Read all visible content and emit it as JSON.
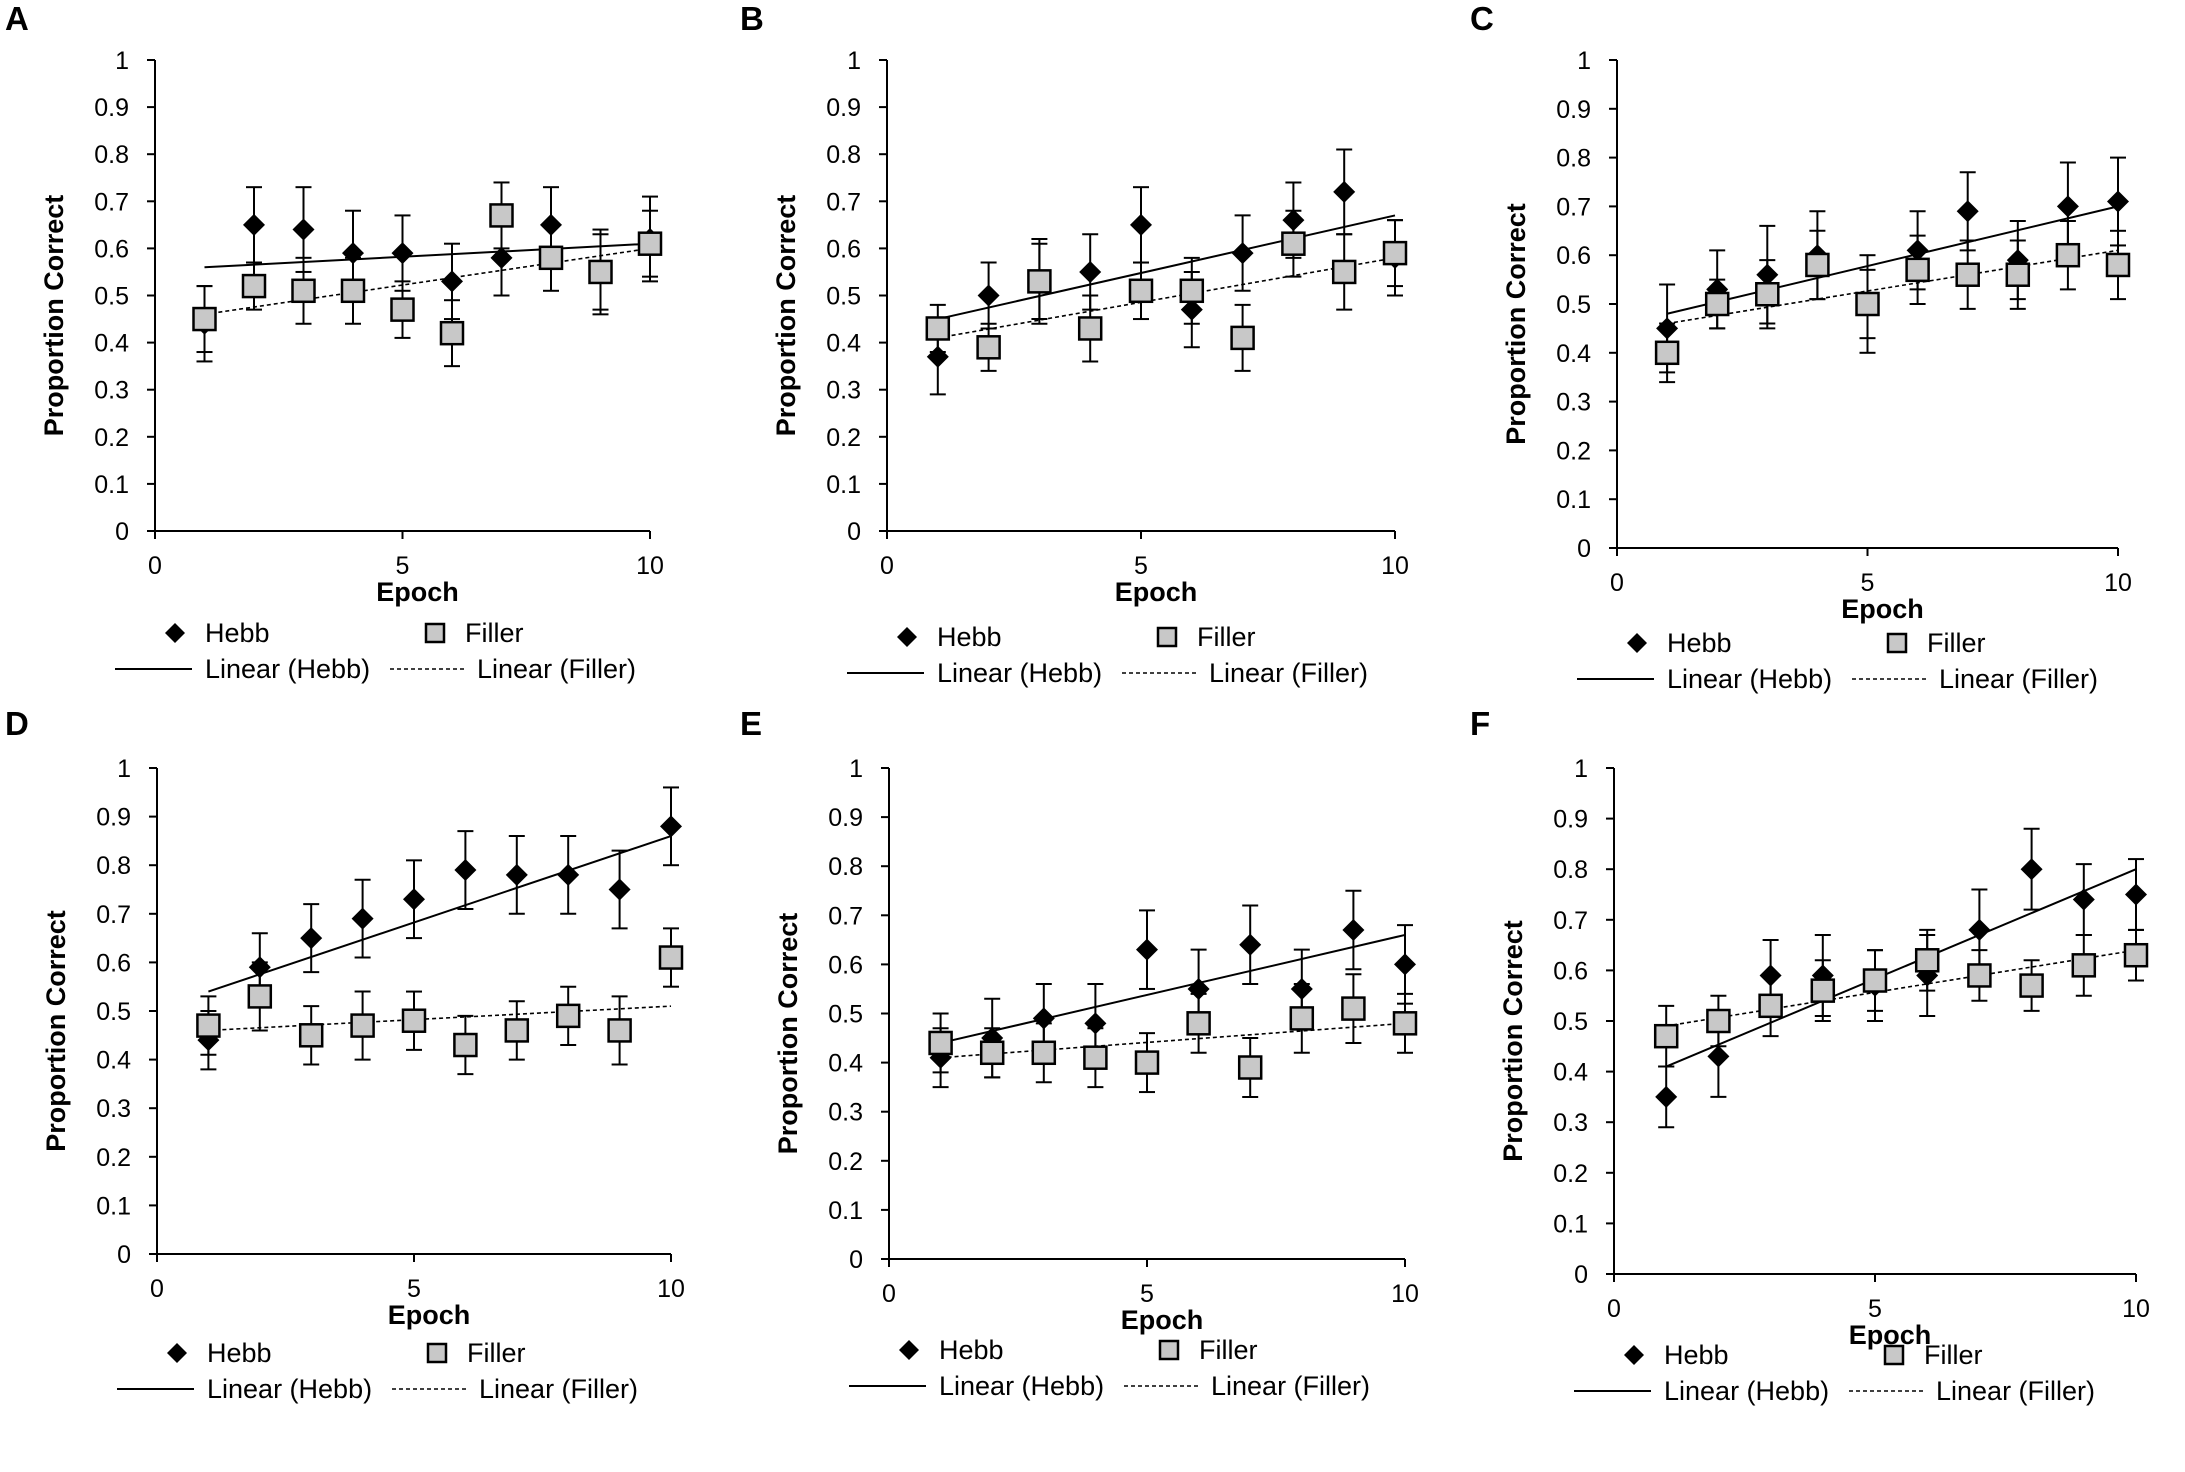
{
  "legend": {
    "hebb": "Hebb",
    "filler": "Filler",
    "linear_hebb": "Linear (Hebb)",
    "linear_filler": "Linear (Filler)"
  },
  "colors": {
    "hebb_marker": "#000000",
    "filler_marker": "#c8c8c8",
    "axis": "#000000"
  },
  "chart_data": [
    {
      "panel": "A",
      "type": "scatter",
      "xlabel": "Epoch",
      "ylabel": "Proportion Correct",
      "xlim": [
        0,
        10
      ],
      "ylim": [
        0,
        1
      ],
      "xticks": [
        "0",
        "5",
        "10"
      ],
      "yticks": [
        "0",
        "0.1",
        "0.2",
        "0.3",
        "0.4",
        "0.5",
        "0.6",
        "0.7",
        "0.8",
        "0.9",
        "1"
      ],
      "series": [
        {
          "name": "Hebb",
          "x": [
            1,
            2,
            3,
            4,
            5,
            6,
            7,
            8,
            9,
            10
          ],
          "y": [
            0.44,
            0.65,
            0.64,
            0.59,
            0.59,
            0.53,
            0.58,
            0.65,
            0.55,
            0.62
          ],
          "err": [
            0.08,
            0.08,
            0.09,
            0.09,
            0.08,
            0.08,
            0.08,
            0.08,
            0.08,
            0.09
          ]
        },
        {
          "name": "Filler",
          "x": [
            1,
            2,
            3,
            4,
            5,
            6,
            7,
            8,
            9,
            10
          ],
          "y": [
            0.45,
            0.52,
            0.51,
            0.51,
            0.47,
            0.42,
            0.67,
            0.58,
            0.55,
            0.61
          ],
          "err": [
            0.07,
            0.05,
            0.07,
            0.07,
            0.06,
            0.07,
            0.07,
            0.07,
            0.09,
            0.07
          ]
        }
      ],
      "trend": {
        "Hebb": [
          0.56,
          0.61
        ],
        "Filler": [
          0.46,
          0.6
        ]
      }
    },
    {
      "panel": "B",
      "type": "scatter",
      "xlabel": "Epoch",
      "ylabel": "Proportion Correct",
      "xlim": [
        0,
        10
      ],
      "ylim": [
        0,
        1
      ],
      "xticks": [
        "0",
        "5",
        "10"
      ],
      "yticks": [
        "0",
        "0.1",
        "0.2",
        "0.3",
        "0.4",
        "0.5",
        "0.6",
        "0.7",
        "0.8",
        "0.9",
        "1"
      ],
      "series": [
        {
          "name": "Hebb",
          "x": [
            1,
            2,
            3,
            4,
            5,
            6,
            7,
            8,
            9,
            10
          ],
          "y": [
            0.37,
            0.5,
            0.53,
            0.55,
            0.65,
            0.47,
            0.59,
            0.66,
            0.72,
            0.58
          ],
          "err": [
            0.08,
            0.07,
            0.08,
            0.08,
            0.08,
            0.08,
            0.08,
            0.08,
            0.09,
            0.08
          ]
        },
        {
          "name": "Filler",
          "x": [
            1,
            2,
            3,
            4,
            5,
            6,
            7,
            8,
            9,
            10
          ],
          "y": [
            0.43,
            0.39,
            0.53,
            0.43,
            0.51,
            0.51,
            0.41,
            0.61,
            0.55,
            0.59
          ],
          "err": [
            0.05,
            0.05,
            0.09,
            0.07,
            0.06,
            0.07,
            0.07,
            0.07,
            0.08,
            0.07
          ]
        }
      ],
      "trend": {
        "Hebb": [
          0.45,
          0.67
        ],
        "Filler": [
          0.41,
          0.58
        ]
      }
    },
    {
      "panel": "C",
      "type": "scatter",
      "xlabel": "Epoch",
      "ylabel": "Proportion Correct",
      "xlim": [
        0,
        10
      ],
      "ylim": [
        0,
        1
      ],
      "xticks": [
        "0",
        "5",
        "10"
      ],
      "yticks": [
        "0",
        "0.1",
        "0.2",
        "0.3",
        "0.4",
        "0.5",
        "0.6",
        "0.7",
        "0.8",
        "0.9",
        "1"
      ],
      "series": [
        {
          "name": "Hebb",
          "x": [
            1,
            2,
            3,
            4,
            5,
            6,
            7,
            8,
            9,
            10
          ],
          "y": [
            0.45,
            0.53,
            0.56,
            0.6,
            0.5,
            0.61,
            0.69,
            0.59,
            0.7,
            0.71
          ],
          "err": [
            0.09,
            0.08,
            0.1,
            0.09,
            0.07,
            0.08,
            0.08,
            0.08,
            0.09,
            0.09
          ]
        },
        {
          "name": "Filler",
          "x": [
            1,
            2,
            3,
            4,
            5,
            6,
            7,
            8,
            9,
            10
          ],
          "y": [
            0.4,
            0.5,
            0.52,
            0.58,
            0.5,
            0.57,
            0.56,
            0.56,
            0.6,
            0.58
          ],
          "err": [
            0.06,
            0.05,
            0.07,
            0.07,
            0.1,
            0.07,
            0.07,
            0.07,
            0.07,
            0.07
          ]
        }
      ],
      "trend": {
        "Hebb": [
          0.48,
          0.7
        ],
        "Filler": [
          0.46,
          0.61
        ]
      }
    },
    {
      "panel": "D",
      "type": "scatter",
      "xlabel": "Epoch",
      "ylabel": "Proportion Correct",
      "xlim": [
        0,
        10
      ],
      "ylim": [
        0,
        1
      ],
      "xticks": [
        "0",
        "5",
        "10"
      ],
      "yticks": [
        "0",
        "0.1",
        "0.2",
        "0.3",
        "0.4",
        "0.5",
        "0.6",
        "0.7",
        "0.8",
        "0.9",
        "1"
      ],
      "series": [
        {
          "name": "Hebb",
          "x": [
            1,
            2,
            3,
            4,
            5,
            6,
            7,
            8,
            9,
            10
          ],
          "y": [
            0.44,
            0.59,
            0.65,
            0.69,
            0.73,
            0.79,
            0.78,
            0.78,
            0.75,
            0.88
          ],
          "err": [
            0.06,
            0.07,
            0.07,
            0.08,
            0.08,
            0.08,
            0.08,
            0.08,
            0.08,
            0.08
          ]
        },
        {
          "name": "Filler",
          "x": [
            1,
            2,
            3,
            4,
            5,
            6,
            7,
            8,
            9,
            10
          ],
          "y": [
            0.47,
            0.53,
            0.45,
            0.47,
            0.48,
            0.43,
            0.46,
            0.49,
            0.46,
            0.61
          ],
          "err": [
            0.06,
            0.07,
            0.06,
            0.07,
            0.06,
            0.06,
            0.06,
            0.06,
            0.07,
            0.06
          ]
        }
      ],
      "trend": {
        "Hebb": [
          0.54,
          0.86
        ],
        "Filler": [
          0.46,
          0.51
        ]
      }
    },
    {
      "panel": "E",
      "type": "scatter",
      "xlabel": "Epoch",
      "ylabel": "Proportion Correct",
      "xlim": [
        0,
        10
      ],
      "ylim": [
        0,
        1
      ],
      "xticks": [
        "0",
        "5",
        "10"
      ],
      "yticks": [
        "0",
        "0.1",
        "0.2",
        "0.3",
        "0.4",
        "0.5",
        "0.6",
        "0.7",
        "0.8",
        "0.9",
        "1"
      ],
      "series": [
        {
          "name": "Hebb",
          "x": [
            1,
            2,
            3,
            4,
            5,
            6,
            7,
            8,
            9,
            10
          ],
          "y": [
            0.41,
            0.45,
            0.49,
            0.48,
            0.63,
            0.55,
            0.64,
            0.55,
            0.67,
            0.6
          ],
          "err": [
            0.06,
            0.08,
            0.07,
            0.08,
            0.08,
            0.08,
            0.08,
            0.08,
            0.08,
            0.08
          ]
        },
        {
          "name": "Filler",
          "x": [
            1,
            2,
            3,
            4,
            5,
            6,
            7,
            8,
            9,
            10
          ],
          "y": [
            0.44,
            0.42,
            0.42,
            0.41,
            0.4,
            0.48,
            0.39,
            0.49,
            0.51,
            0.48
          ],
          "err": [
            0.06,
            0.05,
            0.06,
            0.06,
            0.06,
            0.06,
            0.06,
            0.07,
            0.07,
            0.06
          ]
        }
      ],
      "trend": {
        "Hebb": [
          0.44,
          0.66
        ],
        "Filler": [
          0.41,
          0.48
        ]
      }
    },
    {
      "panel": "F",
      "type": "scatter",
      "xlabel": "Epoch",
      "ylabel": "Proportion Correct",
      "xlim": [
        0,
        10
      ],
      "ylim": [
        0,
        1
      ],
      "xticks": [
        "0",
        "5",
        "10"
      ],
      "yticks": [
        "0",
        "0.1",
        "0.2",
        "0.3",
        "0.4",
        "0.5",
        "0.6",
        "0.7",
        "0.8",
        "0.9",
        "1"
      ],
      "series": [
        {
          "name": "Hebb",
          "x": [
            1,
            2,
            3,
            4,
            5,
            6,
            7,
            8,
            9,
            10
          ],
          "y": [
            0.35,
            0.43,
            0.59,
            0.59,
            0.57,
            0.59,
            0.68,
            0.8,
            0.74,
            0.75
          ],
          "err": [
            0.06,
            0.08,
            0.07,
            0.08,
            0.07,
            0.08,
            0.08,
            0.08,
            0.07,
            0.07
          ]
        },
        {
          "name": "Filler",
          "x": [
            1,
            2,
            3,
            4,
            5,
            6,
            7,
            8,
            9,
            10
          ],
          "y": [
            0.47,
            0.5,
            0.53,
            0.56,
            0.58,
            0.62,
            0.59,
            0.57,
            0.61,
            0.63
          ],
          "err": [
            0.06,
            0.05,
            0.06,
            0.06,
            0.06,
            0.06,
            0.05,
            0.05,
            0.06,
            0.05
          ]
        }
      ],
      "trend": {
        "Hebb": [
          0.41,
          0.8
        ],
        "Filler": [
          0.49,
          0.64
        ]
      }
    }
  ]
}
